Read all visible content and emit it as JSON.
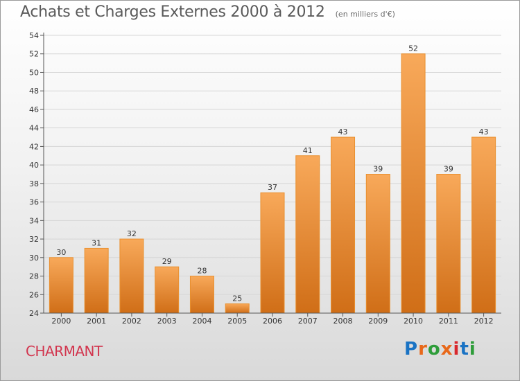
{
  "header": {
    "title": "Achats et Charges Externes 2000 à 2012",
    "subtitle": "(en milliers d'€)"
  },
  "footer": {
    "town": "CHARMANT",
    "logo_text": "Proxiti",
    "logo_letters": [
      "P",
      "r",
      "o",
      "x",
      "i",
      "t",
      "i"
    ],
    "logo_colors": [
      "#1a73c4",
      "#e8681a",
      "#2e9d3a",
      "#e8681a",
      "#d8282d",
      "#1a73c4",
      "#2e9d3a"
    ]
  },
  "colors": {
    "bar_light": "#f8a95a",
    "bar_dark": "#d06e17",
    "bar_stroke": "#e9902f",
    "grid": "#d6d6d6",
    "town": "#d2354e"
  },
  "chart_data": {
    "type": "bar",
    "title": "Achats et Charges Externes 2000 à 2012",
    "subtitle": "(en milliers d'€)",
    "categories": [
      "2000",
      "2001",
      "2002",
      "2003",
      "2004",
      "2005",
      "2006",
      "2007",
      "2008",
      "2009",
      "2010",
      "2011",
      "2012"
    ],
    "values": [
      30,
      31,
      32,
      29,
      28,
      25,
      37,
      41,
      43,
      39,
      52,
      39,
      43
    ],
    "data_labels": [
      "30",
      "31",
      "32",
      "29",
      "28",
      "25",
      "37",
      "41",
      "43",
      "39",
      "52",
      "39",
      "43"
    ],
    "ylim": [
      24,
      54
    ],
    "yticks": [
      24,
      26,
      28,
      30,
      32,
      34,
      36,
      38,
      40,
      42,
      44,
      46,
      48,
      50,
      52,
      54
    ],
    "grid": true,
    "xlabel": "",
    "ylabel": ""
  }
}
